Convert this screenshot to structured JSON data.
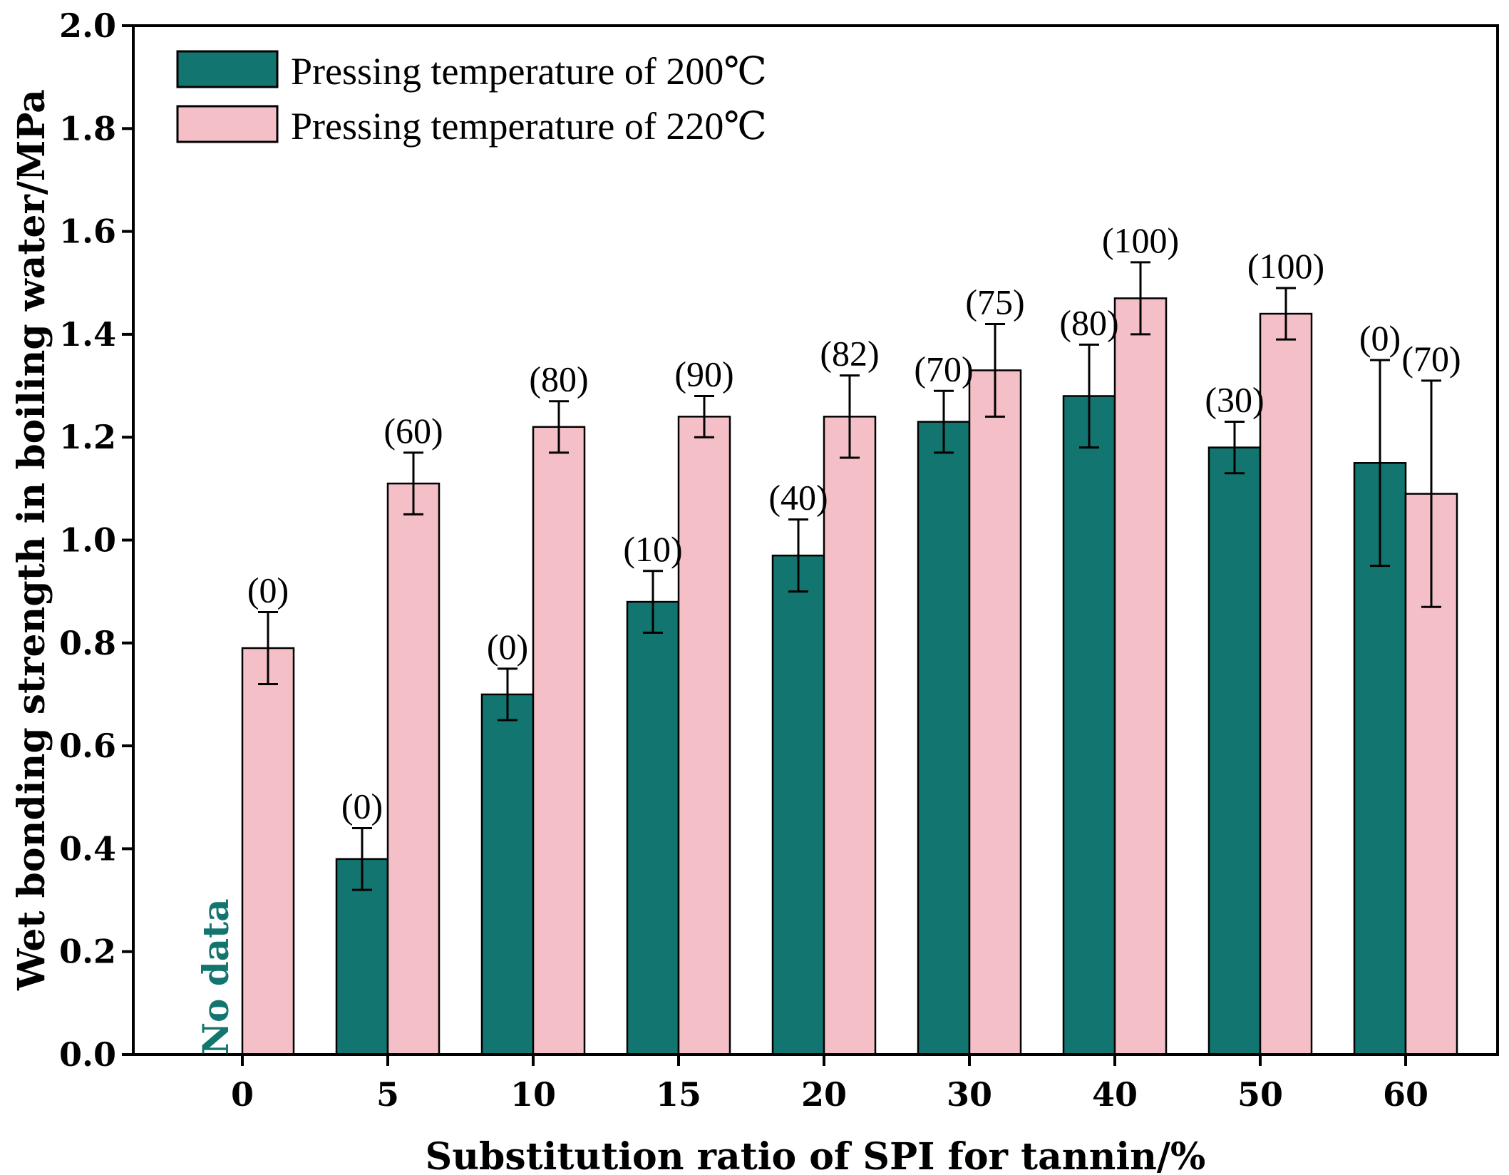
{
  "chart_data": {
    "type": "bar",
    "title": "",
    "xlabel": "Substitution ratio of SPI for tannin/%",
    "ylabel": "Wet bonding strength in boiling water/MPa",
    "ylim": [
      0,
      2.0
    ],
    "yticks": [
      "0.0",
      "0.2",
      "0.4",
      "0.6",
      "0.8",
      "1.0",
      "1.2",
      "1.4",
      "1.6",
      "1.8",
      "2.0"
    ],
    "categories": [
      "0",
      "5",
      "10",
      "15",
      "20",
      "30",
      "40",
      "50",
      "60"
    ],
    "legend_position": "top-left",
    "series": [
      {
        "name": "Pressing temperature of 200℃",
        "color": "#13756f",
        "values": [
          null,
          0.38,
          0.7,
          0.88,
          0.97,
          1.23,
          1.28,
          1.18,
          1.15
        ],
        "errors": [
          null,
          0.06,
          0.05,
          0.06,
          0.07,
          0.06,
          0.1,
          0.05,
          0.2
        ],
        "labels": [
          null,
          "(0)",
          "(0)",
          "(10)",
          "(40)",
          "(70)",
          "(80)",
          "(30)",
          "(0)"
        ]
      },
      {
        "name": "Pressing temperature of 220℃",
        "color": "#f4bfc6",
        "values": [
          0.79,
          1.11,
          1.22,
          1.24,
          1.24,
          1.33,
          1.47,
          1.44,
          1.09
        ],
        "errors": [
          0.07,
          0.06,
          0.05,
          0.04,
          0.08,
          0.09,
          0.07,
          0.05,
          0.22
        ],
        "labels": [
          "(0)",
          "(60)",
          "(80)",
          "(90)",
          "(82)",
          "(75)",
          "(100)",
          "(100)",
          "(70)"
        ]
      }
    ],
    "annotations": [
      {
        "text": "No data",
        "color": "#13756f",
        "category": "0",
        "series": 0
      }
    ]
  }
}
